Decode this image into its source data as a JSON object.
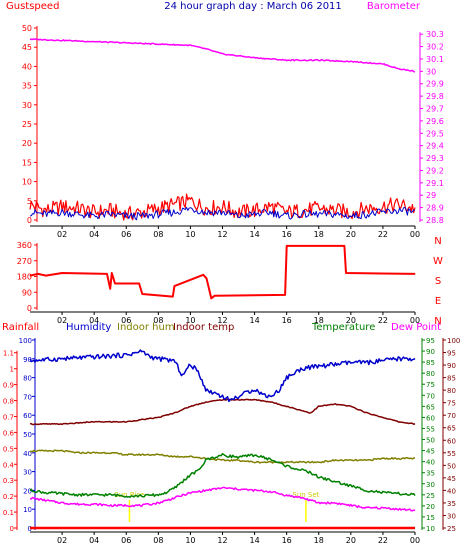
{
  "colors": {
    "gust": "#ff0000",
    "wind": "#0000cc",
    "baro": "#ff00ff",
    "humidity": "#0000cc",
    "indoor_hum": "#808000",
    "indoor_temp": "#800000",
    "temperature": "#008000",
    "dewpoint": "#ff00ff",
    "rain": "#ff0000",
    "sun": "#ffff00"
  },
  "chart_data": [
    {
      "type": "line",
      "title": "24 hour graph day : March 06 2011",
      "left_label": "Gustspeed",
      "right_label": "Barometer",
      "x_ticks": [
        "02",
        "04",
        "06",
        "08",
        "10",
        "12",
        "14",
        "16",
        "18",
        "20",
        "22",
        "00"
      ],
      "ylim_left": [
        0,
        50
      ],
      "y_ticks_left": [
        "0",
        "5",
        "10",
        "15",
        "20",
        "25",
        "30",
        "35",
        "40",
        "45",
        "50"
      ],
      "ylim_right": [
        28.8,
        30.35
      ],
      "y_ticks_right": [
        "28.8",
        "28.9",
        "29",
        "29.1",
        "29.2",
        "29.3",
        "29.4",
        "29.5",
        "29.6",
        "29.7",
        "29.8",
        "29.9",
        "30",
        "30.1",
        "30.2",
        "30.3"
      ],
      "grid": false,
      "series": [
        {
          "key": "gust",
          "axis": "left",
          "x": [
            0,
            1,
            2,
            3,
            4,
            5,
            6,
            7,
            8,
            9,
            10,
            11,
            12,
            13,
            14,
            15,
            16,
            17,
            18,
            19,
            20,
            21,
            22,
            23,
            24
          ],
          "y": [
            4,
            2.5,
            3.5,
            3,
            2,
            2.5,
            1.5,
            2,
            3,
            4,
            5,
            3,
            3.5,
            2,
            2.5,
            3.5,
            2,
            2.5,
            3,
            2.5,
            2,
            3,
            3.5,
            4,
            3
          ]
        },
        {
          "key": "wind",
          "axis": "left",
          "x": [
            0,
            1,
            2,
            3,
            4,
            5,
            6,
            7,
            8,
            9,
            10,
            11,
            12,
            13,
            14,
            15,
            16,
            17,
            18,
            19,
            20,
            21,
            22,
            23,
            24
          ],
          "y": [
            2,
            1.5,
            2,
            1.5,
            1,
            1.5,
            1,
            1,
            1.5,
            2,
            3,
            2,
            2,
            1,
            1.5,
            2,
            1,
            1.5,
            1.5,
            1.5,
            1,
            1.5,
            2,
            2.5,
            2
          ]
        },
        {
          "key": "baro",
          "axis": "right",
          "x": [
            0,
            2,
            4,
            6,
            8,
            10,
            11,
            12,
            14,
            16,
            18,
            20,
            22,
            23,
            24
          ],
          "y": [
            30.26,
            30.25,
            30.24,
            30.23,
            30.22,
            30.21,
            30.18,
            30.14,
            30.11,
            30.09,
            30.09,
            30.08,
            30.06,
            30.02,
            30.0
          ]
        }
      ]
    },
    {
      "type": "line",
      "y_ticks_left": [
        "0",
        "90",
        "180",
        "270",
        "360"
      ],
      "ylim": [
        0,
        360
      ],
      "direction_labels": [
        "N",
        "W",
        "S",
        "E",
        "N"
      ],
      "series": [
        {
          "key": "direction",
          "x": [
            0,
            0.5,
            1,
            2,
            4.8,
            5.0,
            5.1,
            5.3,
            6.8,
            7.0,
            8.9,
            9.0,
            10.8,
            11.0,
            11.3,
            11.5,
            15.9,
            16.0,
            19.6,
            19.7,
            24
          ],
          "y": [
            185,
            195,
            185,
            200,
            195,
            110,
            200,
            140,
            140,
            80,
            65,
            125,
            190,
            170,
            55,
            70,
            75,
            355,
            355,
            200,
            195
          ]
        }
      ]
    },
    {
      "type": "line",
      "legend": [
        "Rainfall",
        "Humidity",
        "Indoor hum",
        "Indoor temp",
        "Temperature",
        "Dew Point"
      ],
      "y_ticks_rain": [
        "0",
        "0.1",
        "0.2",
        "0.3",
        "0.4",
        "0.5",
        "0.6",
        "0.7",
        "0.8",
        "0.9",
        "1",
        "1.1"
      ],
      "ylim_rain": [
        0,
        1.18
      ],
      "y_ticks_humidity": [
        "0",
        "10",
        "20",
        "30",
        "40",
        "50",
        "60",
        "70",
        "80",
        "90",
        "100"
      ],
      "ylim_humidity": [
        0,
        100
      ],
      "y_ticks_temperature": [
        "10",
        "15",
        "20",
        "25",
        "30",
        "35",
        "40",
        "45",
        "50",
        "55",
        "60",
        "65",
        "70",
        "75",
        "80",
        "85",
        "90",
        "95"
      ],
      "ylim_temperature": [
        10,
        95
      ],
      "y_ticks_dewpoint": [
        "25",
        "30",
        "35",
        "40",
        "45",
        "50",
        "55",
        "60",
        "65",
        "70",
        "75",
        "80",
        "85",
        "90",
        "95",
        "100"
      ],
      "ylim_dewpoint": [
        25,
        100
      ],
      "sun_labels": {
        "rise": "Sun Rise",
        "set": "Sun Set"
      },
      "sun_times": [
        6.2,
        17.2
      ],
      "series": [
        {
          "key": "humidity",
          "axis": "humidity",
          "x": [
            0,
            2,
            4,
            6,
            7,
            7.5,
            8,
            9,
            9.5,
            10,
            10.5,
            11,
            11.5,
            12,
            12.5,
            13,
            13.5,
            14,
            14.5,
            15,
            15.5,
            16,
            17,
            18,
            19,
            20,
            21,
            22,
            23,
            24
          ],
          "y": [
            89,
            90,
            91,
            92,
            94,
            91,
            90,
            89,
            81,
            87,
            83,
            73,
            72,
            70,
            68,
            70,
            72,
            74,
            71,
            70,
            73,
            80,
            85,
            86,
            87,
            88,
            88,
            89,
            90,
            90
          ]
        },
        {
          "key": "indoor_temp",
          "axis": "temperature",
          "x": [
            0,
            2,
            4,
            6,
            8,
            9,
            10,
            11,
            12,
            13,
            14,
            15,
            16,
            17,
            17.5,
            18,
            19,
            20,
            21,
            22,
            23,
            24
          ],
          "y": [
            57,
            57,
            58,
            58,
            60,
            62,
            65,
            67,
            68,
            68,
            68,
            67,
            65,
            63,
            62,
            65,
            66,
            65,
            62,
            60,
            58,
            57
          ]
        },
        {
          "key": "indoor_hum",
          "axis": "humidity",
          "x": [
            0,
            1,
            2,
            3,
            4,
            5,
            6,
            7,
            8,
            9,
            10,
            11,
            12,
            13,
            14,
            15,
            16,
            17,
            18,
            19,
            20,
            21,
            22,
            23,
            24
          ],
          "y": [
            41,
            41,
            41,
            40,
            40,
            40,
            39,
            39,
            39,
            38,
            38,
            37,
            36,
            36,
            35,
            35,
            35,
            35,
            35,
            36,
            36,
            36,
            37,
            37,
            37
          ]
        },
        {
          "key": "temperature",
          "axis": "temperature",
          "x": [
            0,
            1,
            2,
            3,
            4,
            5,
            6,
            7,
            8,
            8.5,
            9,
            9.5,
            10,
            10.5,
            11,
            11.5,
            12,
            13,
            14,
            15,
            16,
            17,
            17.5,
            18,
            19,
            20,
            21,
            22,
            23,
            24
          ],
          "y": [
            27,
            26,
            25.5,
            25,
            25,
            25,
            24.5,
            24.5,
            25,
            26,
            28,
            31,
            34,
            36,
            41,
            42,
            43,
            42,
            43,
            41,
            38,
            36,
            35,
            33,
            31,
            29,
            27,
            26,
            25.5,
            25
          ]
        },
        {
          "key": "dewpoint",
          "axis": "dewpoint",
          "x": [
            0,
            1,
            2,
            3,
            4,
            5,
            6,
            7,
            8,
            9,
            10,
            11,
            12,
            13,
            14,
            15,
            16,
            17,
            18,
            19,
            20,
            21,
            22,
            23,
            24
          ],
          "y": [
            37,
            36,
            35,
            34.5,
            34.5,
            34,
            34,
            34,
            35,
            37,
            39,
            40,
            41,
            40.5,
            40,
            39.5,
            38,
            37,
            35,
            35,
            34,
            33,
            33,
            32.5,
            32
          ]
        },
        {
          "key": "rain",
          "axis": "rain",
          "x": [
            0,
            24
          ],
          "y": [
            0,
            0
          ]
        }
      ]
    }
  ]
}
